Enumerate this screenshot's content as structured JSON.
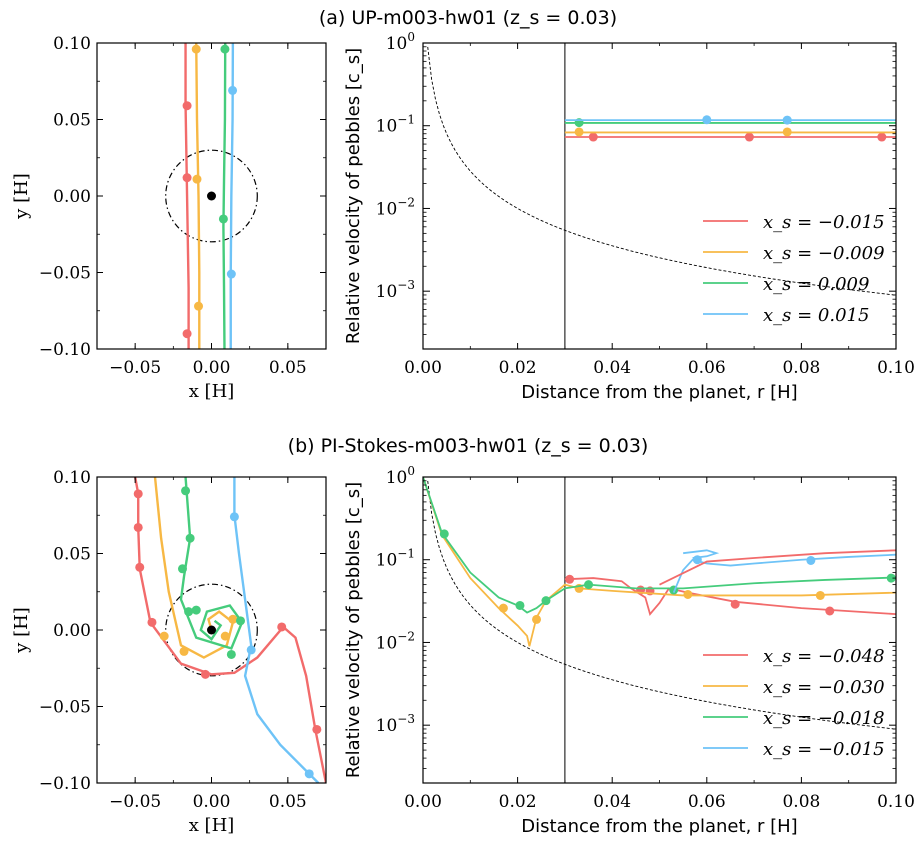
{
  "colors": {
    "red": "#f26b6b",
    "orange": "#f7b844",
    "green": "#45cc7c",
    "blue": "#6ec3f7"
  },
  "panels": [
    {
      "title": "(a) UP-m003-hw01 (z_s = 0.03)",
      "traj": {
        "xlabel": "x [H]",
        "ylabel": "y [H]",
        "xlim": [
          -0.075,
          0.075
        ],
        "ylim": [
          -0.1,
          0.1
        ],
        "xticks": [
          "−0.05",
          "0.00",
          "0.05"
        ],
        "yticks": [
          "0.10",
          "0.05",
          "0.00",
          "−0.05",
          "−0.10"
        ],
        "hill_radius": 0.03,
        "series": [
          {
            "color": "red",
            "pts": [
              [
                -0.017,
                0.1
              ],
              [
                -0.017,
                0.06
              ],
              [
                -0.016,
                0.0
              ],
              [
                -0.015,
                -0.06
              ],
              [
                -0.015,
                -0.1
              ]
            ],
            "dots": [
              [
                -0.016,
                0.059
              ],
              [
                -0.016,
                0.012
              ],
              [
                -0.016,
                -0.09
              ]
            ]
          },
          {
            "color": "orange",
            "pts": [
              [
                -0.01,
                0.1
              ],
              [
                -0.0095,
                0.05
              ],
              [
                -0.0085,
                0.0
              ],
              [
                -0.008,
                -0.05
              ],
              [
                -0.008,
                -0.1
              ]
            ],
            "dots": [
              [
                -0.01,
                0.096
              ],
              [
                -0.0095,
                0.011
              ],
              [
                -0.0085,
                -0.072
              ]
            ]
          },
          {
            "color": "green",
            "pts": [
              [
                0.009,
                0.1
              ],
              [
                0.0088,
                0.05
              ],
              [
                0.0082,
                0.01
              ],
              [
                0.0078,
                -0.02
              ],
              [
                0.0082,
                -0.06
              ],
              [
                0.0085,
                -0.1
              ]
            ],
            "dots": [
              [
                0.0088,
                0.096
              ],
              [
                0.0078,
                -0.015
              ]
            ]
          },
          {
            "color": "blue",
            "pts": [
              [
                0.014,
                0.1
              ],
              [
                0.0138,
                0.05
              ],
              [
                0.013,
                0.0
              ],
              [
                0.0126,
                -0.05
              ],
              [
                0.0126,
                -0.1
              ]
            ],
            "dots": [
              [
                0.0138,
                0.069
              ],
              [
                0.013,
                -0.051
              ]
            ]
          }
        ]
      },
      "vel": {
        "xlabel": "Distance from the planet, r [H]",
        "ylabel": "Relative velocity of pebbles [c_s]",
        "xlim": [
          0,
          0.1
        ],
        "ylim_log": [
          0.0002,
          1
        ],
        "xticks": [
          "0.00",
          "0.02",
          "0.04",
          "0.06",
          "0.08",
          "0.10"
        ],
        "vline": 0.03,
        "legend": [
          "x_s = −0.015",
          "x_s = −0.009",
          "x_s = 0.009",
          "x_s = 0.015"
        ],
        "series": [
          {
            "color": "red",
            "pts": [
              [
                0.03,
                0.073
              ],
              [
                0.1,
                0.073
              ]
            ],
            "dots": [
              [
                0.036,
                0.073
              ],
              [
                0.069,
                0.073
              ],
              [
                0.097,
                0.073
              ]
            ]
          },
          {
            "color": "orange",
            "pts": [
              [
                0.03,
                0.083
              ],
              [
                0.1,
                0.083
              ]
            ],
            "dots": [
              [
                0.033,
                0.084
              ],
              [
                0.077,
                0.084
              ]
            ]
          },
          {
            "color": "green",
            "pts": [
              [
                0.03,
                0.108
              ],
              [
                0.1,
                0.108
              ]
            ],
            "dots": [
              [
                0.033,
                0.109
              ]
            ]
          },
          {
            "color": "blue",
            "pts": [
              [
                0.03,
                0.117
              ],
              [
                0.1,
                0.117
              ]
            ],
            "dots": [
              [
                0.06,
                0.118
              ],
              [
                0.077,
                0.117
              ]
            ]
          }
        ]
      }
    },
    {
      "title": "(b) PI-Stokes-m003-hw01 (z_s = 0.03)",
      "traj": {
        "xlabel": "x [H]",
        "ylabel": "y [H]",
        "xlim": [
          -0.075,
          0.075
        ],
        "ylim": [
          -0.1,
          0.1
        ],
        "xticks": [
          "−0.05",
          "0.00",
          "0.05"
        ],
        "yticks": [
          "0.10",
          "0.05",
          "0.00",
          "−0.05",
          "−0.10"
        ],
        "hill_radius": 0.03,
        "series": [
          {
            "color": "red",
            "pts": [
              [
                -0.05,
                0.1
              ],
              [
                -0.048,
                0.089
              ],
              [
                -0.048,
                0.067
              ],
              [
                -0.047,
                0.04
              ],
              [
                -0.04,
                0.005
              ],
              [
                -0.02,
                -0.022
              ],
              [
                0.0,
                -0.029
              ],
              [
                0.015,
                -0.028
              ],
              [
                0.03,
                -0.018
              ],
              [
                0.047,
                0.002
              ],
              [
                0.055,
                -0.005
              ],
              [
                0.062,
                -0.03
              ],
              [
                0.068,
                -0.065
              ],
              [
                0.072,
                -0.085
              ],
              [
                0.075,
                -0.1
              ]
            ],
            "dots": [
              [
                -0.048,
                0.089
              ],
              [
                -0.048,
                0.067
              ],
              [
                -0.047,
                0.041
              ],
              [
                -0.039,
                0.005
              ],
              [
                -0.004,
                -0.029
              ],
              [
                0.046,
                0.002
              ],
              [
                0.069,
                -0.065
              ]
            ]
          },
          {
            "color": "orange",
            "pts": [
              [
                -0.037,
                0.1
              ],
              [
                -0.033,
                0.06
              ],
              [
                -0.028,
                0.025
              ],
              [
                -0.02,
                -0.01
              ],
              [
                -0.005,
                -0.018
              ],
              [
                0.01,
                -0.01
              ],
              [
                0.014,
                0.005
              ],
              [
                0.005,
                0.012
              ],
              [
                -0.002,
                0.007
              ],
              [
                0.0,
                0.0
              ]
            ],
            "dots": [
              [
                -0.031,
                -0.004
              ],
              [
                -0.018,
                -0.014
              ],
              [
                0.009,
                -0.004
              ],
              [
                0.014,
                0.007
              ]
            ]
          },
          {
            "color": "green",
            "pts": [
              [
                -0.017,
                0.1
              ],
              [
                -0.014,
                0.06
              ],
              [
                -0.018,
                0.035
              ],
              [
                -0.02,
                0.02
              ],
              [
                -0.01,
                -0.005
              ],
              [
                0.013,
                -0.012
              ],
              [
                0.02,
                0.005
              ],
              [
                0.012,
                0.016
              ],
              [
                -0.003,
                0.012
              ],
              [
                -0.007,
                0.0
              ],
              [
                0.0,
                -0.006
              ],
              [
                0.006,
                0.003
              ],
              [
                0.002,
                0.006
              ]
            ],
            "dots": [
              [
                -0.017,
                0.091
              ],
              [
                -0.014,
                0.06
              ],
              [
                -0.019,
                0.04
              ],
              [
                -0.015,
                0.012
              ],
              [
                -0.01,
                0.013
              ],
              [
                0.013,
                -0.016
              ],
              [
                0.019,
                0.006
              ]
            ]
          },
          {
            "color": "blue",
            "pts": [
              [
                0.015,
                0.1
              ],
              [
                0.015,
                0.075
              ],
              [
                0.018,
                0.05
              ],
              [
                0.022,
                0.02
              ],
              [
                0.026,
                -0.01
              ],
              [
                0.022,
                -0.03
              ],
              [
                0.03,
                -0.055
              ],
              [
                0.045,
                -0.075
              ],
              [
                0.065,
                -0.095
              ],
              [
                0.07,
                -0.1
              ]
            ],
            "dots": [
              [
                0.015,
                0.074
              ],
              [
                0.026,
                -0.013
              ],
              [
                0.064,
                -0.094
              ]
            ]
          }
        ]
      },
      "vel": {
        "xlabel": "Distance from the planet, r [H]",
        "ylabel": "Relative velocity of pebbles [c_s]",
        "xlim": [
          0,
          0.1
        ],
        "ylim_log": [
          0.0002,
          1
        ],
        "xticks": [
          "0.00",
          "0.02",
          "0.04",
          "0.06",
          "0.08",
          "0.10"
        ],
        "vline": 0.03,
        "legend": [
          "x_s = −0.048",
          "x_s = −0.030",
          "x_s = −0.018",
          "x_s = −0.015"
        ],
        "series": [
          {
            "color": "red",
            "pts": [
              [
                0.03,
                0.058
              ],
              [
                0.036,
                0.06
              ],
              [
                0.042,
                0.055
              ],
              [
                0.044,
                0.045
              ],
              [
                0.047,
                0.035
              ],
              [
                0.048,
                0.022
              ],
              [
                0.05,
                0.03
              ],
              [
                0.052,
                0.045
              ],
              [
                0.056,
                0.04
              ],
              [
                0.066,
                0.031
              ],
              [
                0.08,
                0.026
              ],
              [
                0.1,
                0.022
              ]
            ],
            "dots": [
              [
                0.031,
                0.058
              ],
              [
                0.046,
                0.043
              ],
              [
                0.048,
                0.042
              ],
              [
                0.066,
                0.029
              ],
              [
                0.086,
                0.024
              ]
            ]
          },
          {
            "color": "orange",
            "pts": [
              [
                0.0,
                1.0
              ],
              [
                0.004,
                0.2
              ],
              [
                0.01,
                0.06
              ],
              [
                0.016,
                0.026
              ],
              [
                0.02,
                0.016
              ],
              [
                0.022,
                0.012
              ],
              [
                0.0225,
                0.009
              ],
              [
                0.024,
                0.02
              ],
              [
                0.026,
                0.032
              ],
              [
                0.03,
                0.05
              ],
              [
                0.033,
                0.045
              ],
              [
                0.04,
                0.042
              ],
              [
                0.055,
                0.037
              ],
              [
                0.08,
                0.037
              ],
              [
                0.1,
                0.04
              ]
            ],
            "dots": [
              [
                0.017,
                0.026
              ],
              [
                0.024,
                0.019
              ],
              [
                0.033,
                0.045
              ],
              [
                0.056,
                0.038
              ],
              [
                0.084,
                0.037
              ]
            ]
          },
          {
            "color": "green",
            "pts": [
              [
                0.0,
                1.0
              ],
              [
                0.004,
                0.21
              ],
              [
                0.01,
                0.07
              ],
              [
                0.016,
                0.035
              ],
              [
                0.02,
                0.028
              ],
              [
                0.022,
                0.023
              ],
              [
                0.024,
                0.026
              ],
              [
                0.026,
                0.032
              ],
              [
                0.03,
                0.045
              ],
              [
                0.035,
                0.05
              ],
              [
                0.045,
                0.045
              ],
              [
                0.055,
                0.045
              ],
              [
                0.07,
                0.052
              ],
              [
                0.085,
                0.057
              ],
              [
                0.1,
                0.061
              ]
            ],
            "dots": [
              [
                0.0045,
                0.205
              ],
              [
                0.0205,
                0.028
              ],
              [
                0.026,
                0.032
              ],
              [
                0.035,
                0.05
              ],
              [
                0.053,
                0.043
              ],
              [
                0.099,
                0.06
              ]
            ]
          },
          {
            "color": "blue",
            "pts": [
              [
                0.053,
                0.04
              ],
              [
                0.054,
                0.055
              ],
              [
                0.055,
                0.075
              ],
              [
                0.057,
                0.1
              ],
              [
                0.06,
                0.09
              ],
              [
                0.065,
                0.085
              ],
              [
                0.07,
                0.09
              ],
              [
                0.08,
                0.1
              ],
              [
                0.09,
                0.108
              ],
              [
                0.1,
                0.115
              ]
            ],
            "dots": [
              [
                0.058,
                0.1
              ],
              [
                0.082,
                0.098
              ]
            ]
          },
          {
            "color": "red",
            "pts": [
              [
                0.05,
                0.05
              ],
              [
                0.06,
                0.095
              ],
              [
                0.07,
                0.105
              ],
              [
                0.085,
                0.12
              ],
              [
                0.1,
                0.13
              ]
            ],
            "dots": []
          },
          {
            "color": "blue",
            "pts": [
              [
                0.055,
                0.12
              ],
              [
                0.06,
                0.13
              ],
              [
                0.062,
                0.12
              ],
              [
                0.06,
                0.11
              ],
              [
                0.057,
                0.105
              ]
            ],
            "dots": []
          }
        ]
      }
    }
  ]
}
